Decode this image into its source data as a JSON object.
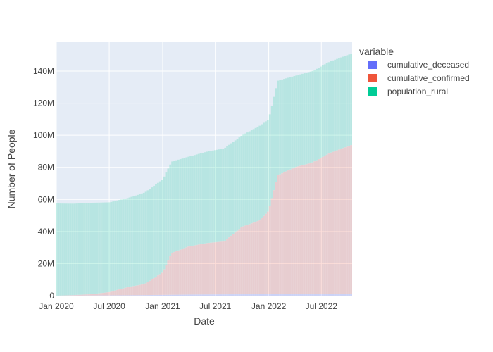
{
  "chart_data": {
    "type": "bar",
    "stacked": true,
    "xlabel": "Date",
    "ylabel": "Number of People",
    "x_range": [
      "2020-01-01",
      "2022-10-15"
    ],
    "ylim": [
      0,
      158000000
    ],
    "x_ticks": [
      {
        "date": "2020-01-01",
        "label": "Jan 2020"
      },
      {
        "date": "2020-07-01",
        "label": "Jul 2020"
      },
      {
        "date": "2021-01-01",
        "label": "Jan 2021"
      },
      {
        "date": "2021-07-01",
        "label": "Jul 2021"
      },
      {
        "date": "2022-01-01",
        "label": "Jan 2022"
      },
      {
        "date": "2022-07-01",
        "label": "Jul 2022"
      }
    ],
    "y_ticks": [
      {
        "value": 0,
        "label": "0"
      },
      {
        "value": 20000000,
        "label": "20M"
      },
      {
        "value": 40000000,
        "label": "40M"
      },
      {
        "value": 60000000,
        "label": "60M"
      },
      {
        "value": 80000000,
        "label": "80M"
      },
      {
        "value": 100000000,
        "label": "100M"
      },
      {
        "value": 120000000,
        "label": "120M"
      },
      {
        "value": 140000000,
        "label": "140M"
      }
    ],
    "legend": {
      "title": "variable",
      "placement": "right"
    },
    "grid": true,
    "series": [
      {
        "name": "cumulative_deceased",
        "color": "#636efa",
        "x": [
          "2020-01-01",
          "2020-04-01",
          "2020-07-01",
          "2020-10-01",
          "2021-01-01",
          "2021-04-01",
          "2021-07-01",
          "2021-10-01",
          "2022-01-01",
          "2022-04-01",
          "2022-07-01",
          "2022-10-15"
        ],
        "values": [
          0,
          100000,
          200000,
          300000,
          500000,
          700000,
          800000,
          900000,
          1000000,
          1050000,
          1080000,
          1100000
        ]
      },
      {
        "name": "cumulative_confirmed",
        "color": "#ef553b",
        "x": [
          "2020-01-01",
          "2020-03-01",
          "2020-05-01",
          "2020-07-01",
          "2020-09-01",
          "2020-11-01",
          "2021-01-01",
          "2021-02-01",
          "2021-04-01",
          "2021-06-01",
          "2021-08-01",
          "2021-10-01",
          "2021-12-01",
          "2022-01-01",
          "2022-02-01",
          "2022-04-01",
          "2022-06-01",
          "2022-08-01",
          "2022-10-15"
        ],
        "values": [
          0,
          300000,
          800000,
          2000000,
          5000000,
          7000000,
          14000000,
          26000000,
          30000000,
          32000000,
          33000000,
          42000000,
          46000000,
          52000000,
          74000000,
          79000000,
          82000000,
          88000000,
          93000000
        ]
      },
      {
        "name": "population_rural",
        "color": "#00cc96",
        "x": [
          "2020-01-01",
          "2020-03-01",
          "2020-05-01",
          "2020-07-01",
          "2020-09-01",
          "2020-11-01",
          "2021-01-01",
          "2021-02-01",
          "2021-04-01",
          "2021-06-01",
          "2021-08-01",
          "2021-10-01",
          "2021-12-01",
          "2022-01-01",
          "2022-02-01",
          "2022-04-01",
          "2022-06-01",
          "2022-08-01",
          "2022-10-15"
        ],
        "values": [
          57500000,
          57000000,
          57000000,
          56000000,
          55500000,
          57000000,
          58000000,
          57000000,
          56000000,
          57000000,
          58000000,
          57000000,
          59000000,
          57000000,
          59000000,
          57000000,
          57000000,
          57000000,
          57000000
        ]
      }
    ]
  }
}
